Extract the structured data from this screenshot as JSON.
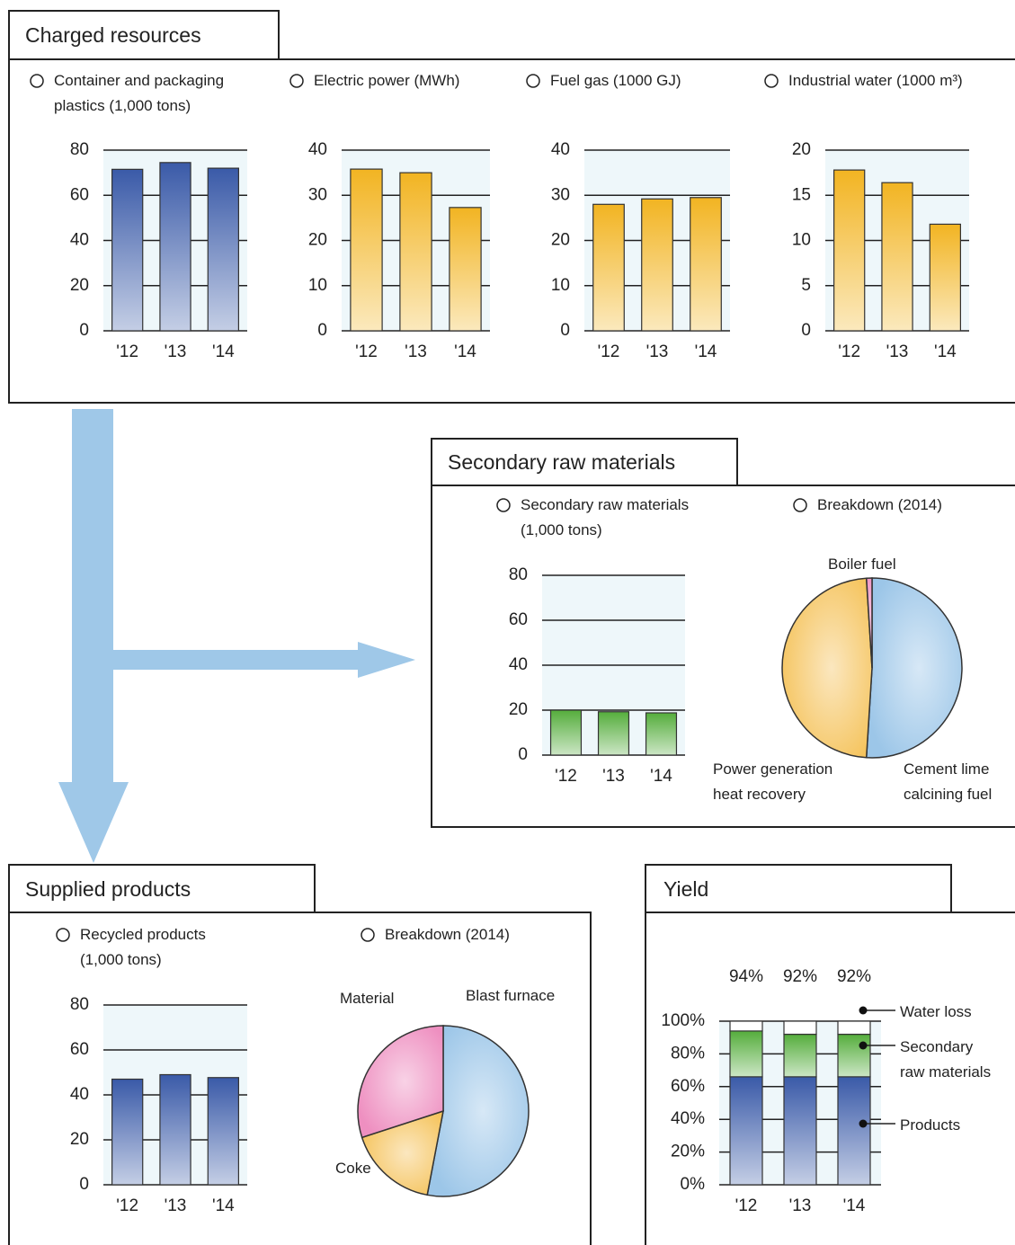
{
  "section_titles": [
    "Charged resources",
    "Secondary raw materials",
    "Supplied products",
    "Yield"
  ],
  "chart_data": [
    {
      "type": "bar",
      "title": "Container and packaging plastics (1,000 tons)",
      "categories": [
        "'12",
        "'13",
        "'14"
      ],
      "values": [
        71.5,
        74.5,
        72
      ],
      "color": "#3a5aa8",
      "ylim": [
        0,
        80
      ],
      "yticks": [
        0,
        20,
        40,
        60,
        80
      ],
      "grid": true
    },
    {
      "type": "bar",
      "title": "Electric power (MWh)",
      "categories": [
        "'12",
        "'13",
        "'14"
      ],
      "values": [
        35.8,
        35,
        27.3
      ],
      "color": "#f2b422",
      "ylim": [
        0,
        40
      ],
      "yticks": [
        0,
        10,
        20,
        30,
        40
      ],
      "grid": true
    },
    {
      "type": "bar",
      "title": "Fuel gas (1000 GJ)",
      "categories": [
        "'12",
        "'13",
        "'14"
      ],
      "values": [
        28,
        29.2,
        29.5
      ],
      "color": "#f2b422",
      "ylim": [
        0,
        40
      ],
      "yticks": [
        0,
        10,
        20,
        30,
        40
      ],
      "grid": true
    },
    {
      "type": "bar",
      "title": "Industrial water (1000 m³)",
      "categories": [
        "'12",
        "'13",
        "'14"
      ],
      "values": [
        17.8,
        16.4,
        11.8
      ],
      "color": "#f2b422",
      "ylim": [
        0,
        20
      ],
      "yticks": [
        0,
        5,
        10,
        15,
        20
      ],
      "grid": true
    },
    {
      "type": "bar",
      "title": "Secondary raw materials (1,000 tons)",
      "categories": [
        "'12",
        "'13",
        "'14"
      ],
      "values": [
        20,
        19.3,
        18.8
      ],
      "color": "#55ad3c",
      "ylim": [
        0,
        80
      ],
      "yticks": [
        0,
        20,
        40,
        60,
        80
      ],
      "grid": true
    },
    {
      "type": "pie",
      "title": "Breakdown (2014)",
      "categories": [
        "Cement lime calcining fuel",
        "Power generation heat recovery",
        "Boiler fuel"
      ],
      "values": [
        51,
        48,
        1
      ],
      "colors": [
        "#9cc6e8",
        "#f5c45e",
        "#ee8fc0"
      ]
    },
    {
      "type": "bar",
      "title": "Recycled products (1,000 tons)",
      "categories": [
        "'12",
        "'13",
        "'14"
      ],
      "values": [
        47,
        49,
        47.7
      ],
      "color": "#3a5aa8",
      "ylim": [
        0,
        80
      ],
      "yticks": [
        0,
        20,
        40,
        60,
        80
      ],
      "grid": true
    },
    {
      "type": "pie",
      "title": "Breakdown (2014)",
      "categories": [
        "Blast furnace",
        "Coke",
        "Material"
      ],
      "values": [
        53,
        17,
        30
      ],
      "colors": [
        "#9cc6e8",
        "#f5c45e",
        "#ee8fc0"
      ]
    },
    {
      "type": "stacked_bar",
      "categories": [
        "'12",
        "'13",
        "'14"
      ],
      "series": [
        {
          "name": "Products",
          "color": "#3a5aa8",
          "values": [
            66,
            66,
            66
          ]
        },
        {
          "name": "Secondary raw materials",
          "color": "#55ad3c",
          "values": [
            28,
            26,
            26
          ]
        },
        {
          "name": "Water loss",
          "color": "#ffffff",
          "values": [
            6,
            8,
            8
          ]
        }
      ],
      "totals": {
        "values": [
          94,
          92,
          92
        ],
        "value_labels": [
          "94%",
          "92%",
          "92%"
        ]
      },
      "ylim": [
        0,
        100
      ],
      "yticks": [
        {
          "value": 0,
          "label": "0%"
        },
        {
          "value": 20,
          "label": "20%"
        },
        {
          "value": 40,
          "label": "40%"
        },
        {
          "value": 60,
          "label": "60%"
        },
        {
          "value": 80,
          "label": "80%"
        },
        {
          "value": 100,
          "label": "100%"
        }
      ],
      "grid": true
    }
  ]
}
